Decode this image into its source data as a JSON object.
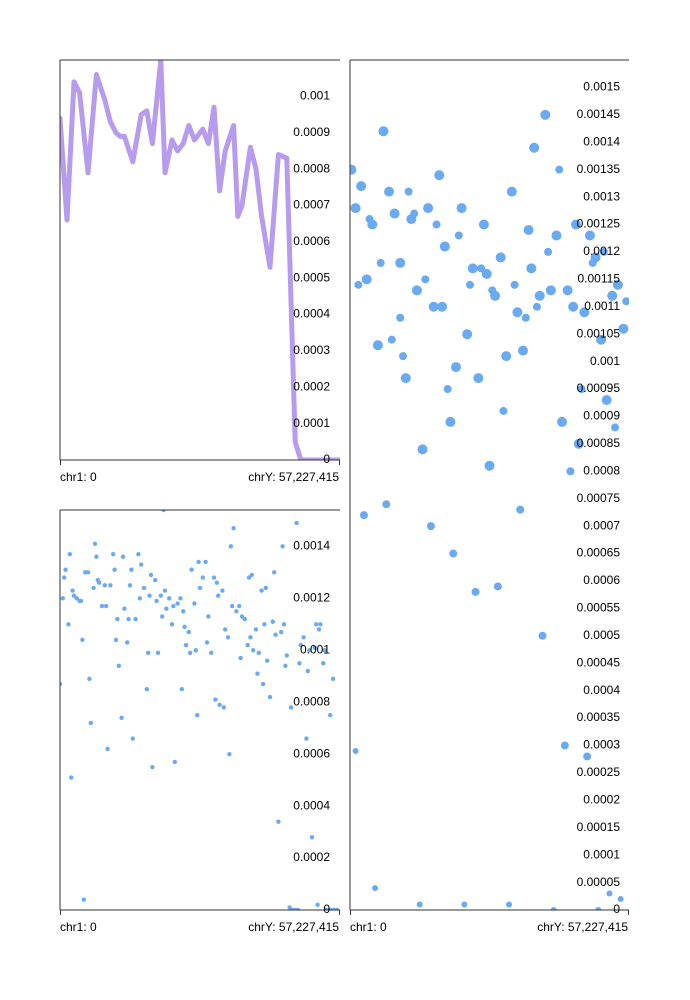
{
  "chart_data": [
    {
      "type": "line",
      "title": "",
      "x_start_label": "chr1: 0",
      "x_end_label": "chrY: 57,227,415",
      "ylim": [
        0,
        0.0011
      ],
      "y_ticks": [
        0,
        0.0001,
        0.0002,
        0.0003,
        0.0004,
        0.0005,
        0.0006,
        0.0007,
        0.0008,
        0.0009,
        0.001
      ],
      "y_tick_labels": [
        "0",
        "0.0001",
        "0.0002",
        "0.0003",
        "0.0004",
        "0.0005",
        "0.0006",
        "0.0007",
        "0.0008",
        "0.0009",
        "0.001"
      ],
      "color": "#b79bee",
      "series": [
        {
          "x": [
            0,
            0.025,
            0.05,
            0.07,
            0.1,
            0.13,
            0.16,
            0.18,
            0.2,
            0.215,
            0.23,
            0.26,
            0.29,
            0.31,
            0.33,
            0.36,
            0.375,
            0.4,
            0.42,
            0.44,
            0.46,
            0.48,
            0.51,
            0.53,
            0.55,
            0.57,
            0.59,
            0.62,
            0.635,
            0.65,
            0.68,
            0.7,
            0.72,
            0.75,
            0.78,
            0.81,
            0.84,
            0.86,
            0.89,
            0.91,
            0.93,
            0.955,
            0.97,
            0.99,
            1.0
          ],
          "y": [
            0.00094,
            0.00066,
            0.00104,
            0.00101,
            0.00079,
            0.00106,
            0.00099,
            0.00093,
            0.0009,
            0.00089,
            0.00089,
            0.00082,
            0.00095,
            0.00096,
            0.00087,
            0.0011,
            0.00079,
            0.00088,
            0.00085,
            0.00087,
            0.00092,
            0.00088,
            0.00091,
            0.00087,
            0.00097,
            0.00074,
            0.00085,
            0.00092,
            0.00067,
            0.0007,
            0.00086,
            0.0008,
            0.00067,
            0.00053,
            0.00084,
            0.00083,
            5e-05,
            0.0,
            0.0,
            0.0,
            0.0,
            0.0,
            0.0,
            0.0,
            0.0
          ]
        }
      ]
    },
    {
      "type": "scatter",
      "title": "",
      "x_start_label": "chr1: 0",
      "x_end_label": "chrY: 57,227,415",
      "ylim": [
        0,
        0.00155
      ],
      "y_ticks": [
        0,
        5e-05,
        0.0001,
        0.00015,
        0.0002,
        0.00025,
        0.0003,
        0.00035,
        0.0004,
        0.00045,
        0.0005,
        0.00055,
        0.0006,
        0.00065,
        0.0007,
        0.00075,
        0.0008,
        0.00085,
        0.0009,
        0.00095,
        0.001,
        0.00105,
        0.0011,
        0.00115,
        0.0012,
        0.00125,
        0.0013,
        0.00135,
        0.0014,
        0.00145,
        0.0015
      ],
      "y_tick_labels": [
        "0",
        "0.00005",
        "0.0001",
        "0.00015",
        "0.0002",
        "0.00025",
        "0.0003",
        "0.00035",
        "0.0004",
        "0.00045",
        "0.0005",
        "0.00055",
        "0.0006",
        "0.00065",
        "0.0007",
        "0.00075",
        "0.0008",
        "0.00085",
        "0.0009",
        "0.00095",
        "0.001",
        "0.00105",
        "0.0011",
        "0.00115",
        "0.0012",
        "0.00125",
        "0.0013",
        "0.00135",
        "0.0014",
        "0.00145",
        "0.0015"
      ],
      "color": "#6aaaf0",
      "series": [
        {
          "x": [
            0.005,
            0.02,
            0.04,
            0.06,
            0.08,
            0.1,
            0.12,
            0.14,
            0.16,
            0.18,
            0.2,
            0.22,
            0.24,
            0.26,
            0.28,
            0.3,
            0.32,
            0.34,
            0.36,
            0.38,
            0.4,
            0.42,
            0.44,
            0.46,
            0.48,
            0.5,
            0.52,
            0.54,
            0.56,
            0.58,
            0.6,
            0.62,
            0.64,
            0.66,
            0.68,
            0.7,
            0.72,
            0.74,
            0.76,
            0.78,
            0.8,
            0.82,
            0.84,
            0.86,
            0.88,
            0.9,
            0.92,
            0.94,
            0.96,
            0.98,
            0.03,
            0.07,
            0.11,
            0.15,
            0.19,
            0.23,
            0.27,
            0.31,
            0.35,
            0.39,
            0.43,
            0.47,
            0.51,
            0.55,
            0.59,
            0.63,
            0.67,
            0.71,
            0.75,
            0.79,
            0.83,
            0.87,
            0.91,
            0.95,
            0.99,
            0.05,
            0.13,
            0.21,
            0.29,
            0.37,
            0.45,
            0.53,
            0.61,
            0.69,
            0.77,
            0.85,
            0.93,
            0.97,
            0.09,
            0.25,
            0.41,
            0.57,
            0.73,
            0.89,
            0.33,
            0.49,
            0.65,
            0.81,
            0.02,
            0.18
          ],
          "y": [
            0.00135,
            0.00128,
            0.00132,
            0.00115,
            0.00125,
            0.00103,
            0.00142,
            0.00131,
            0.00127,
            0.00118,
            0.00097,
            0.00126,
            0.00113,
            0.00084,
            0.00128,
            0.0011,
            0.00134,
            0.00121,
            0.00089,
            0.00099,
            0.00128,
            0.00105,
            0.00117,
            0.00097,
            0.00125,
            0.00081,
            0.00112,
            0.00119,
            0.00101,
            0.00131,
            0.00109,
            0.00102,
            0.00124,
            0.00139,
            0.00112,
            0.00145,
            0.00113,
            0.00123,
            0.00089,
            0.00113,
            0.0011,
            0.00085,
            0.00109,
            0.00123,
            0.00119,
            0.00104,
            0.00093,
            0.00112,
            0.00114,
            0.00106,
            0.00114,
            0.00126,
            0.00118,
            0.00104,
            0.00101,
            0.00127,
            0.00115,
            0.00125,
            0.00095,
            0.00123,
            0.00114,
            0.00117,
            0.00113,
            0.00091,
            0.00114,
            0.00108,
            0.0011,
            0.0012,
            0.00135,
            0.0008,
            0.00095,
            0.00118,
            0.0012,
            0.00088,
            0.00111,
            0.00072,
            0.00074,
            0.00131,
            0.0007,
            0.00065,
            0.00058,
            0.00059,
            0.00073,
            0.0005,
            0.0003,
            0.00028,
            3e-05,
            2e-05,
            4e-05,
            1e-05,
            1e-05,
            1e-05,
            0.0,
            0.0,
            0.0011,
            0.00116,
            0.00117,
            0.00125,
            0.00029,
            0.00108
          ],
          "r": [
            5,
            5,
            5,
            5,
            5,
            5,
            5,
            5,
            5,
            5,
            5,
            5,
            5,
            5,
            5,
            5,
            5,
            5,
            5,
            5,
            5,
            5,
            5,
            5,
            5,
            5,
            5,
            5,
            5,
            5,
            5,
            5,
            5,
            5,
            5,
            5,
            5,
            5,
            5,
            5,
            5,
            5,
            5,
            5,
            5,
            5,
            5,
            5,
            5,
            5,
            4,
            4,
            4,
            4,
            4,
            4,
            4,
            4,
            4,
            4,
            4,
            4,
            4,
            4,
            4,
            4,
            4,
            4,
            4,
            4,
            4,
            4,
            4,
            4,
            4,
            4,
            4,
            4,
            4,
            4,
            4,
            4,
            4,
            4,
            4,
            4,
            3,
            3,
            3,
            3,
            3,
            3,
            3,
            3,
            5,
            5,
            5,
            5,
            3,
            4
          ]
        }
      ]
    },
    {
      "type": "scatter",
      "title": "",
      "x_start_label": "chr1: 0",
      "x_end_label": "chrY: 57,227,415",
      "ylim": [
        0,
        0.00154
      ],
      "y_ticks": [
        0,
        0.0002,
        0.0004,
        0.0006,
        0.0008,
        0.001,
        0.0012,
        0.0014
      ],
      "y_tick_labels": [
        "0",
        "0.0002",
        "0.0004",
        "0.0006",
        "0.0008",
        "0.001",
        "0.0012",
        "0.0014"
      ],
      "color": "#6aaaf0",
      "series": [
        {
          "x": [
            0.0,
            0.01,
            0.02,
            0.03,
            0.04,
            0.05,
            0.06,
            0.07,
            0.08,
            0.09,
            0.1,
            0.11,
            0.12,
            0.13,
            0.14,
            0.15,
            0.16,
            0.17,
            0.18,
            0.19,
            0.2,
            0.21,
            0.22,
            0.23,
            0.24,
            0.25,
            0.26,
            0.27,
            0.28,
            0.29,
            0.3,
            0.31,
            0.32,
            0.33,
            0.34,
            0.35,
            0.36,
            0.37,
            0.38,
            0.39,
            0.4,
            0.41,
            0.42,
            0.43,
            0.44,
            0.45,
            0.46,
            0.47,
            0.48,
            0.49,
            0.5,
            0.51,
            0.52,
            0.53,
            0.54,
            0.55,
            0.56,
            0.57,
            0.58,
            0.59,
            0.6,
            0.61,
            0.62,
            0.63,
            0.64,
            0.65,
            0.66,
            0.67,
            0.68,
            0.69,
            0.7,
            0.71,
            0.72,
            0.73,
            0.74,
            0.75,
            0.76,
            0.77,
            0.78,
            0.79,
            0.8,
            0.81,
            0.82,
            0.83,
            0.84,
            0.85,
            0.86,
            0.87,
            0.88,
            0.89,
            0.9,
            0.91,
            0.92,
            0.93,
            0.94,
            0.95,
            0.96,
            0.97,
            0.98,
            0.99,
            0.015,
            0.045,
            0.075,
            0.105,
            0.135,
            0.165,
            0.195,
            0.225,
            0.255,
            0.285,
            0.315,
            0.345,
            0.375,
            0.405,
            0.435,
            0.465,
            0.495,
            0.525,
            0.555,
            0.585,
            0.615,
            0.645,
            0.675,
            0.705,
            0.735,
            0.765,
            0.795,
            0.825,
            0.855,
            0.885,
            0.915,
            0.945,
            0.975,
            0.035,
            0.125,
            0.245,
            0.365,
            0.485,
            0.605,
            0.725,
            0.845,
            0.965,
            0.085,
            0.205,
            0.325,
            0.445,
            0.565,
            0.685,
            0.805,
            0.925
          ],
          "y": [
            0.00087,
            0.0012,
            0.00131,
            0.0011,
            0.00051,
            0.00121,
            0.0012,
            0.00119,
            0.00104,
            0.0013,
            0.0013,
            0.00072,
            0.00124,
            0.00136,
            0.00126,
            0.00117,
            0.00125,
            0.00062,
            0.00125,
            0.00137,
            0.00104,
            0.00094,
            0.00074,
            0.00116,
            0.00103,
            0.00125,
            0.00066,
            0.00112,
            0.00137,
            0.00133,
            0.00124,
            0.00085,
            0.00121,
            0.00055,
            0.00127,
            0.00099,
            0.00121,
            0.00154,
            0.00116,
            0.0012,
            0.0011,
            0.00057,
            0.00118,
            0.0012,
            0.00115,
            0.00102,
            0.00107,
            0.00131,
            0.00118,
            0.00075,
            0.00124,
            0.00128,
            0.00134,
            0.00113,
            0.00099,
            0.00128,
            0.00126,
            0.00079,
            0.00123,
            0.00108,
            0.00105,
            0.0014,
            0.00147,
            0.00115,
            0.00117,
            0.00113,
            0.00112,
            0.00102,
            0.00105,
            0.001,
            0.00108,
            0.00099,
            0.00123,
            0.0011,
            0.00096,
            0.00082,
            0.00111,
            0.00106,
            0.00034,
            0.00107,
            0.0011,
            0.00098,
            1e-05,
            0.0,
            0.0,
            0.0,
            0.00102,
            0.00105,
            0.00066,
            0.001,
            0.00028,
            0.00101,
            2e-05,
            0.0011,
            0.00095,
            0.0,
            0.0,
            0.0,
            0.0,
            0.0,
            0.00128,
            0.00123,
            0.00119,
            0.00089,
            0.00127,
            0.00117,
            0.00131,
            0.00136,
            0.00131,
            0.0012,
            0.00099,
            0.00119,
            0.00123,
            0.00117,
            0.00085,
            0.00099,
            0.00134,
            0.00103,
            0.00081,
            0.00078,
            0.00117,
            0.00097,
            0.00128,
            0.00091,
            0.00124,
            0.0013,
            0.0014,
            0.00078,
            0.00095,
            0.00092,
            0.0011,
            0.001,
            0.00089,
            0.00137,
            0.00141,
            0.00112,
            0.00113,
            0.001,
            0.0006,
            0.00087,
            0.00149,
            0.00075,
            4e-05,
            0.00112,
            0.00129,
            0.00109,
            0.00121,
            0.00129,
            0.00094,
            0.00108
          ]
        }
      ]
    }
  ]
}
